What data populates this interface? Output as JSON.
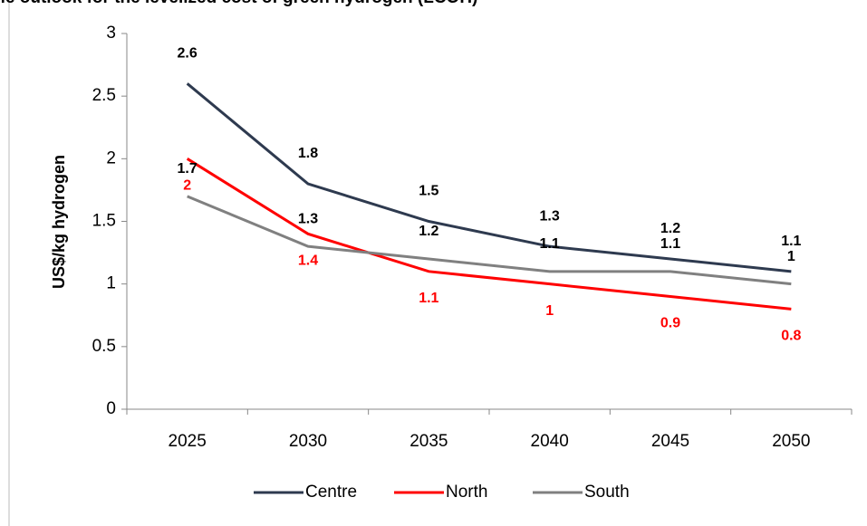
{
  "chart_data": {
    "type": "line",
    "title": "Chile outlook for the levelized cost of green hydrogen (LCOH)",
    "y_label": "US$/kg hydrogen",
    "categories": [
      "2025",
      "2030",
      "2035",
      "2040",
      "2045",
      "2050"
    ],
    "series": [
      {
        "name": "Centre",
        "color": "#2e3a4f",
        "values": [
          2.6,
          1.8,
          1.5,
          1.3,
          1.2,
          1.1
        ]
      },
      {
        "name": "North",
        "color": "#ff0000",
        "values": [
          2,
          1.4,
          1.1,
          1,
          0.9,
          0.8
        ]
      },
      {
        "name": "South",
        "color": "#808080",
        "values": [
          1.7,
          1.3,
          1.2,
          1.1,
          1.1,
          1
        ]
      }
    ],
    "ylim": [
      0,
      3
    ],
    "yticks": [
      0,
      0.5,
      1,
      1.5,
      2,
      2.5,
      3
    ],
    "legend": "bottom"
  }
}
